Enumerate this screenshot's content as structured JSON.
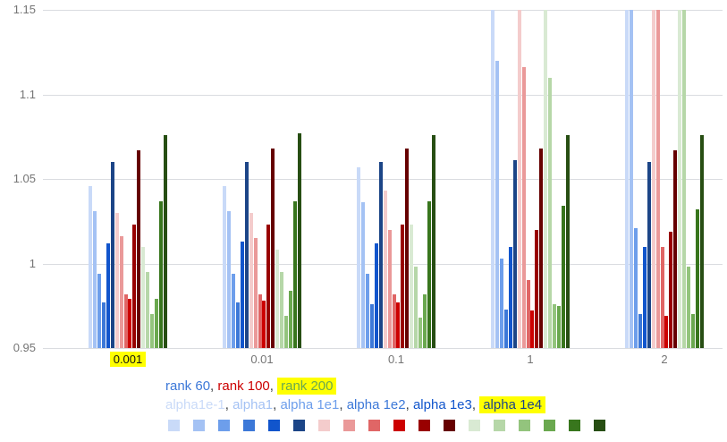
{
  "chart_data": {
    "type": "bar",
    "title": "",
    "x_categories": [
      "0.001",
      "0.01",
      "0.1",
      "1",
      "2"
    ],
    "x_highlighted_category": "0.001",
    "y_ticks": [
      "0.95",
      "1",
      "1.05",
      "1.1",
      "1.15"
    ],
    "y_min": 0.95,
    "y_max": 1.15,
    "bar_baseline": 0.95,
    "grid": "horizontal",
    "legend_position": "bottom",
    "series": [
      {
        "rank": "rank 60",
        "alpha": "alpha1e-1",
        "color": "#c9daf8",
        "values": [
          1.046,
          1.046,
          1.057,
          1.15,
          1.15
        ]
      },
      {
        "rank": "rank 60",
        "alpha": "alpha1",
        "color": "#a4c2f4",
        "values": [
          1.031,
          1.031,
          1.036,
          1.12,
          1.15
        ]
      },
      {
        "rank": "rank 60",
        "alpha": "alpha 1e1",
        "color": "#6d9eeb",
        "values": [
          0.994,
          0.994,
          0.994,
          1.003,
          1.021
        ]
      },
      {
        "rank": "rank 60",
        "alpha": "alpha 1e2",
        "color": "#3c78d8",
        "values": [
          0.977,
          0.977,
          0.976,
          0.973,
          0.97
        ]
      },
      {
        "rank": "rank 60",
        "alpha": "alpha 1e3",
        "color": "#1155cc",
        "values": [
          1.012,
          1.013,
          1.012,
          1.01,
          1.01
        ]
      },
      {
        "rank": "rank 60",
        "alpha": "alpha 1e4",
        "color": "#1c4587",
        "values": [
          1.06,
          1.06,
          1.06,
          1.061,
          1.06
        ]
      },
      {
        "rank": "rank 100",
        "alpha": "alpha1e-1",
        "color": "#f4cccc",
        "values": [
          1.03,
          1.03,
          1.043,
          1.15,
          1.15
        ]
      },
      {
        "rank": "rank 100",
        "alpha": "alpha1",
        "color": "#ea9999",
        "values": [
          1.016,
          1.015,
          1.02,
          1.116,
          1.15
        ]
      },
      {
        "rank": "rank 100",
        "alpha": "alpha 1e1",
        "color": "#e06666",
        "values": [
          0.982,
          0.982,
          0.982,
          0.99,
          1.01
        ]
      },
      {
        "rank": "rank 100",
        "alpha": "alpha 1e2",
        "color": "#cc0000",
        "values": [
          0.979,
          0.978,
          0.977,
          0.972,
          0.969
        ]
      },
      {
        "rank": "rank 100",
        "alpha": "alpha 1e3",
        "color": "#990000",
        "values": [
          1.023,
          1.023,
          1.023,
          1.02,
          1.019
        ]
      },
      {
        "rank": "rank 100",
        "alpha": "alpha 1e4",
        "color": "#660000",
        "values": [
          1.067,
          1.068,
          1.068,
          1.068,
          1.067
        ]
      },
      {
        "rank": "rank 200",
        "alpha": "alpha1e-1",
        "color": "#d9ead3",
        "values": [
          1.01,
          1.008,
          1.023,
          1.15,
          1.15
        ]
      },
      {
        "rank": "rank 200",
        "alpha": "alpha1",
        "color": "#b6d7a8",
        "values": [
          0.995,
          0.995,
          0.998,
          1.11,
          1.15
        ]
      },
      {
        "rank": "rank 200",
        "alpha": "alpha 1e1",
        "color": "#93c47d",
        "values": [
          0.97,
          0.969,
          0.968,
          0.976,
          0.998
        ]
      },
      {
        "rank": "rank 200",
        "alpha": "alpha 1e2",
        "color": "#6aa84f",
        "values": [
          0.979,
          0.984,
          0.982,
          0.975,
          0.97
        ]
      },
      {
        "rank": "rank 200",
        "alpha": "alpha 1e3",
        "color": "#38761d",
        "values": [
          1.037,
          1.037,
          1.037,
          1.034,
          1.032
        ]
      },
      {
        "rank": "rank 200",
        "alpha": "alpha 1e4",
        "color": "#274e13",
        "values": [
          1.076,
          1.077,
          1.076,
          1.076,
          1.076
        ]
      }
    ]
  },
  "legend": {
    "rank_line": [
      {
        "label": "rank 60",
        "color": "#3c78d8",
        "highlighted": false
      },
      {
        "label": "rank 100",
        "color": "#cc0000",
        "highlighted": false
      },
      {
        "label": "rank 200",
        "color": "#6aa84f",
        "highlighted": true
      }
    ],
    "alpha_line": [
      {
        "label": "alpha1e-1",
        "color": "#c9daf8",
        "highlighted": false
      },
      {
        "label": "alpha1",
        "color": "#a4c2f4",
        "highlighted": false
      },
      {
        "label": "alpha 1e1",
        "color": "#6d9eeb",
        "highlighted": false
      },
      {
        "label": "alpha 1e2",
        "color": "#3c78d8",
        "highlighted": false
      },
      {
        "label": "alpha 1e3",
        "color": "#1155cc",
        "highlighted": false
      },
      {
        "label": "alpha 1e4",
        "color": "#1c4587",
        "highlighted": true
      }
    ],
    "separator": ", "
  },
  "swatch_row": [
    "#c9daf8",
    "#a4c2f4",
    "#6d9eeb",
    "#3c78d8",
    "#1155cc",
    "#1c4587",
    "#f4cccc",
    "#ea9999",
    "#e06666",
    "#cc0000",
    "#990000",
    "#660000",
    "#d9ead3",
    "#b6d7a8",
    "#93c47d",
    "#6aa84f",
    "#38761d",
    "#274e13"
  ],
  "style": {
    "highlight_color": "#ffff00",
    "axis_text_color": "#757575",
    "gridline_color": "#dadce0",
    "background": "#ffffff"
  }
}
